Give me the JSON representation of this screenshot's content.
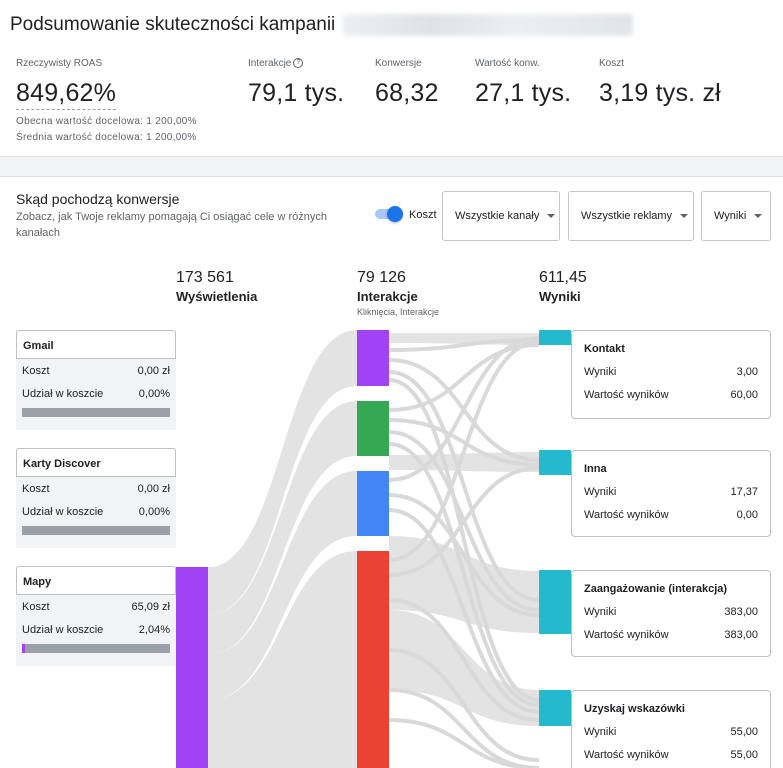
{
  "header": {
    "title": "Podsumowanie skuteczności kampanii"
  },
  "metrics": {
    "roas": {
      "label": "Rzeczywisty ROAS",
      "value": "849,62%",
      "target_current": "Obecna wartość docelowa: 1 200,00%",
      "target_average": "Średnia wartość docelowa: 1 200,00%"
    },
    "interactions": {
      "label": "Interakcje",
      "value": "79,1 tys."
    },
    "conversions": {
      "label": "Konwersje",
      "value": "68,32"
    },
    "conv_value": {
      "label": "Wartość konw.",
      "value": "27,1 tys."
    },
    "cost": {
      "label": "Koszt",
      "value": "3,19 tys. zł"
    }
  },
  "section": {
    "title": "Skąd pochodzą konwersje",
    "description": "Zobacz, jak Twoje reklamy pomagają Ci osiągać cele w różnych kanałach",
    "toggle_label": "Koszt",
    "toggle_on": true,
    "dropdowns": [
      "Wszystkie kanały",
      "Wszystkie reklamy",
      "Wyniki"
    ]
  },
  "columns": {
    "impressions": {
      "value": "173 561",
      "label": "Wyświetlenia"
    },
    "interactions": {
      "value": "79 126",
      "label": "Interakcje",
      "sublabel": "Kliknięcia, Interakcje"
    },
    "results": {
      "value": "611,45",
      "label": "Wyniki"
    }
  },
  "sources": [
    {
      "name": "Gmail",
      "cost_label": "Koszt",
      "cost": "0,00 zł",
      "share_label": "Udział w koszcie",
      "share": "0,00%",
      "share_fraction": 0.0
    },
    {
      "name": "Karty Discover",
      "cost_label": "Koszt",
      "cost": "0,00 zł",
      "share_label": "Udział w koszcie",
      "share": "0,00%",
      "share_fraction": 0.0
    },
    {
      "name": "Mapy",
      "cost_label": "Koszt",
      "cost": "65,09 zł",
      "share_label": "Udział w koszcie",
      "share": "2,04%",
      "share_fraction": 0.0204
    }
  ],
  "results": [
    {
      "name": "Kontakt",
      "results_label": "Wyniki",
      "results": "3,00",
      "value_label": "Wartość wyników",
      "value": "60,00"
    },
    {
      "name": "Inna",
      "results_label": "Wyniki",
      "results": "17,37",
      "value_label": "Wartość wyników",
      "value": "0,00"
    },
    {
      "name": "Zaangażowanie (interakcja)",
      "results_label": "Wyniki",
      "results": "383,00",
      "value_label": "Wartość wyników",
      "value": "383,00"
    },
    {
      "name": "Uzyskaj wskazówki",
      "results_label": "Wyniki",
      "results": "55,00",
      "value_label": "Wartość wyników",
      "value": "55,00"
    }
  ],
  "colors": {
    "purple": "#a142f4",
    "green": "#34a853",
    "blue": "#4285f4",
    "red": "#ea4335",
    "cyan": "#24b9cd",
    "flow": "#e3e3e3",
    "accent": "#1a73e8"
  }
}
